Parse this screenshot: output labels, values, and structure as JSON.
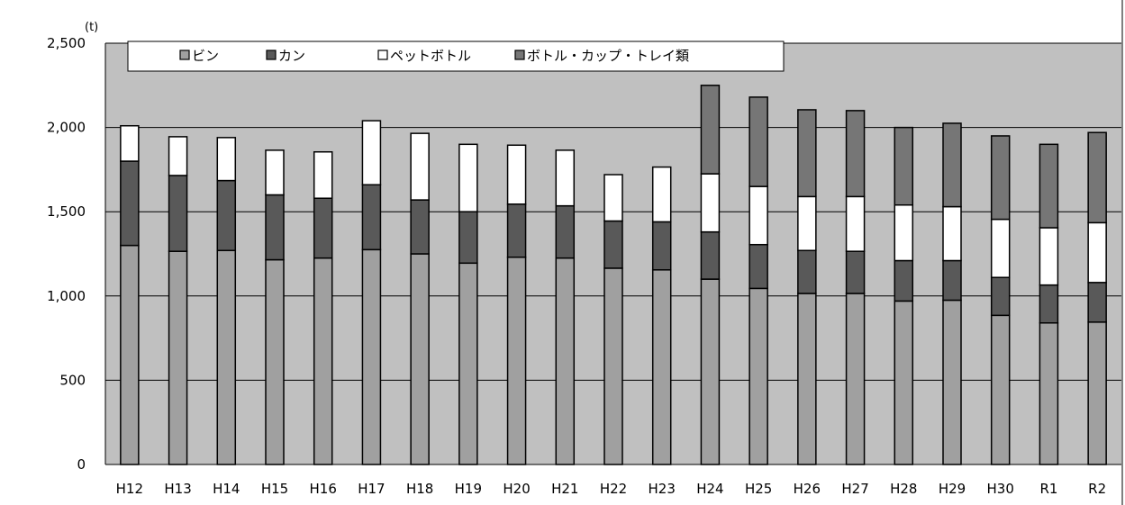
{
  "chart_data": {
    "type": "bar",
    "stacked": true,
    "unit_label": "(t)",
    "categories": [
      "H12",
      "H13",
      "H14",
      "H15",
      "H16",
      "H17",
      "H18",
      "H19",
      "H20",
      "H21",
      "H22",
      "H23",
      "H24",
      "H25",
      "H26",
      "H27",
      "H28",
      "H29",
      "H30",
      "R1",
      "R2"
    ],
    "series": [
      {
        "name": "ビン",
        "color": "#a0a0a0",
        "values": [
          1300,
          1265,
          1270,
          1215,
          1225,
          1275,
          1250,
          1195,
          1230,
          1225,
          1165,
          1155,
          1100,
          1045,
          1015,
          1015,
          970,
          975,
          885,
          840,
          845
        ]
      },
      {
        "name": "カン",
        "color": "#595959",
        "values": [
          500,
          450,
          415,
          385,
          355,
          385,
          320,
          305,
          315,
          310,
          280,
          285,
          280,
          260,
          255,
          250,
          240,
          235,
          225,
          225,
          235
        ]
      },
      {
        "name": "ペットボトル",
        "color": "#ffffff",
        "values": [
          210,
          230,
          255,
          265,
          275,
          380,
          395,
          400,
          350,
          330,
          275,
          325,
          345,
          345,
          320,
          325,
          330,
          320,
          345,
          340,
          355
        ]
      },
      {
        "name": "ボトル・カップ・トレイ類",
        "color": "#767676",
        "values": [
          0,
          0,
          0,
          0,
          0,
          0,
          0,
          0,
          0,
          0,
          0,
          0,
          525,
          530,
          515,
          510,
          460,
          495,
          495,
          495,
          535
        ]
      }
    ],
    "yticks": [
      "0",
      "500",
      "1,000",
      "1,500",
      "2,000",
      "2,500"
    ],
    "ylim": [
      0,
      2500
    ],
    "grid": true,
    "plot_background": "#c0c0c0",
    "legend_position": "top"
  }
}
